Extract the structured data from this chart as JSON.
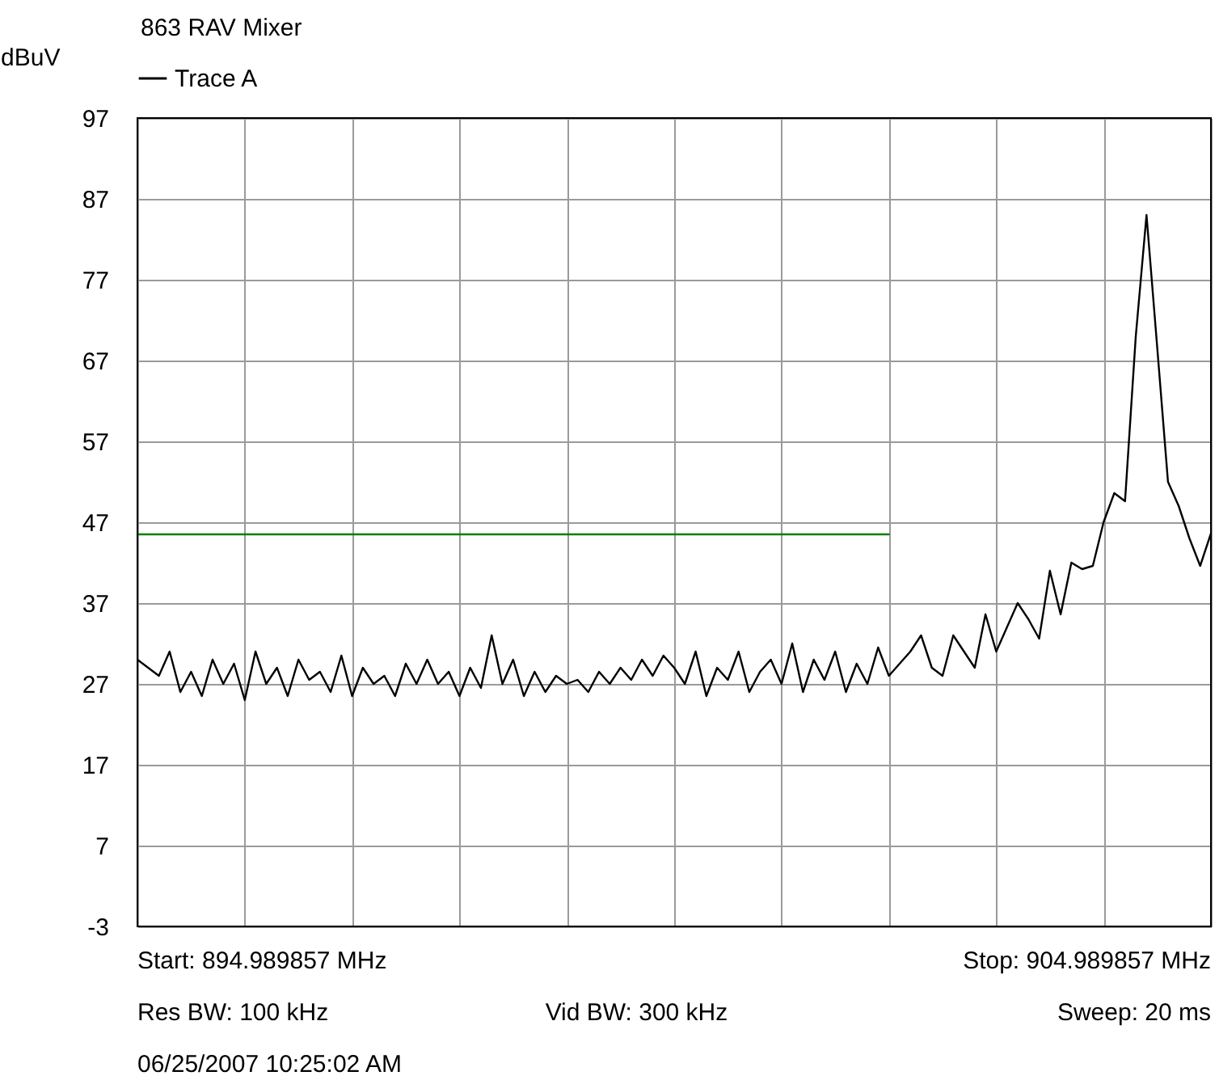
{
  "chart_data": {
    "type": "line",
    "title": "863 RAV Mixer",
    "ylabel": "dBuV",
    "categories": [
      null,
      null,
      null,
      null,
      null,
      null,
      null,
      null,
      null,
      null,
      null,
      null,
      null,
      null,
      null,
      null,
      null,
      null,
      null,
      null,
      null,
      null,
      null,
      null,
      null,
      null,
      null,
      null,
      null,
      null,
      null,
      null,
      null,
      null,
      null,
      null,
      null,
      null,
      null,
      null,
      null,
      null,
      null,
      null,
      null,
      null,
      null,
      null,
      null,
      null,
      null,
      null,
      null,
      null,
      null,
      null,
      null,
      null,
      null,
      null,
      null,
      null,
      null,
      null,
      null,
      null,
      null,
      null,
      null,
      null,
      null,
      null,
      null,
      null,
      null,
      null,
      null,
      null,
      null,
      null,
      null,
      null,
      null,
      null,
      null,
      null,
      null,
      null,
      null,
      null,
      null,
      null,
      null,
      null,
      null,
      null,
      null,
      null,
      null,
      null,
      null
    ],
    "ylim": [
      -3,
      97
    ],
    "yticks": [
      -3,
      7,
      17,
      27,
      37,
      47,
      57,
      67,
      77,
      87,
      97
    ],
    "grid": true,
    "tick_labels": "y",
    "legend": "top left",
    "series": [
      {
        "name": "Trace A",
        "color": "#000000",
        "values": [
          30,
          29,
          28,
          31,
          26,
          28.5,
          25.5,
          30,
          27,
          29.5,
          25,
          31,
          27,
          29,
          25.5,
          30,
          27.5,
          28.5,
          26,
          30.5,
          25.5,
          29,
          27,
          28,
          25.5,
          29.5,
          27,
          30,
          27,
          28.5,
          25.5,
          29,
          26.5,
          33,
          27,
          30,
          25.5,
          28.5,
          26,
          28,
          27,
          27.5,
          26,
          28.5,
          27,
          29,
          27.5,
          30,
          28,
          30.5,
          29,
          27,
          31,
          25.5,
          29,
          27.5,
          31,
          26,
          28.5,
          30,
          27,
          32,
          26,
          30,
          27.5,
          31,
          26,
          29.5,
          27,
          31.5,
          28,
          29.5,
          31,
          33,
          29,
          28,
          33,
          31,
          29,
          35.6,
          31,
          34,
          37,
          35,
          32.6,
          41,
          35.6,
          42,
          41.2,
          41.6,
          47,
          50.6,
          49.6,
          70,
          85,
          68.6,
          52,
          49,
          45,
          41.6,
          45.6
        ]
      },
      {
        "color": "#008000",
        "values": [
          45.5,
          45.5,
          45.5,
          45.5,
          45.5,
          45.5,
          45.5,
          45.5,
          45.5,
          45.5,
          45.5,
          45.5,
          45.5,
          45.5,
          45.5,
          45.5,
          45.5,
          45.5,
          45.5,
          45.5,
          45.5,
          45.5,
          45.5,
          45.5,
          45.5,
          45.5,
          45.5,
          45.5,
          45.5,
          45.5,
          45.5,
          45.5,
          45.5,
          45.5,
          45.5,
          45.5,
          45.5,
          45.5,
          45.5,
          45.5,
          45.5,
          45.5,
          45.5,
          45.5,
          45.5,
          45.5,
          45.5,
          45.5,
          45.5,
          45.5,
          45.5,
          45.5,
          45.5,
          45.5,
          45.5,
          45.5,
          45.5,
          45.5,
          45.5,
          45.5,
          45.5,
          45.5,
          45.5,
          45.5,
          45.5,
          45.5,
          45.5,
          45.5,
          45.5,
          45.5,
          45.5,
          null,
          null,
          null,
          null,
          null,
          null,
          null,
          null,
          null,
          null,
          null,
          null,
          null,
          null,
          null,
          null,
          null,
          null,
          null,
          null,
          null,
          null,
          null,
          null,
          null,
          null,
          null,
          null,
          null,
          null
        ]
      }
    ],
    "annotations": [
      "Start: 894.989857 MHz",
      "Stop: 904.989857 MHz",
      "Res BW: 100 kHz",
      "Vid BW: 300 kHz",
      "Sweep: 20 ms",
      "06/25/2007 10:25:02 AM"
    ]
  }
}
